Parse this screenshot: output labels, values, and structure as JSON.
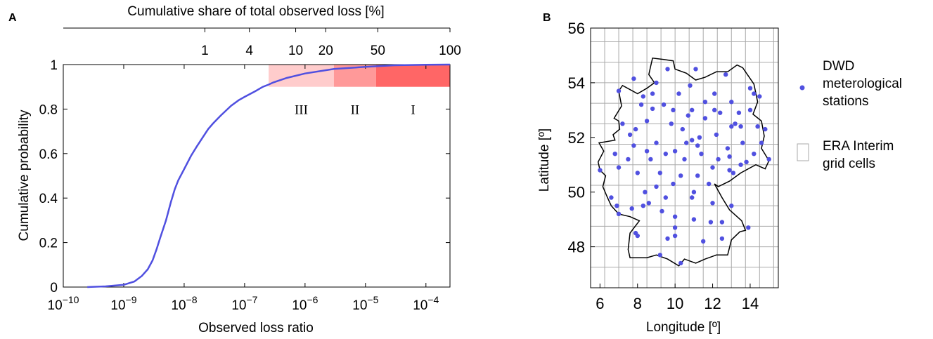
{
  "chart_data": [
    {
      "type": "line",
      "panel_label": "A",
      "xlabel": "Observed loss ratio",
      "ylabel": "Cumulative probability",
      "top_xlabel": "Cumulative share of total observed loss [%]",
      "x_scale": "log",
      "xlim": [
        1e-10,
        0.00025
      ],
      "ylim": [
        0,
        1
      ],
      "x_ticks": [
        {
          "value": 1e-10,
          "base": "10",
          "exp": "−10"
        },
        {
          "value": 1e-09,
          "base": "10",
          "exp": "−9"
        },
        {
          "value": 1e-08,
          "base": "10",
          "exp": "−8"
        },
        {
          "value": 1e-07,
          "base": "10",
          "exp": "−7"
        },
        {
          "value": 1e-06,
          "base": "10",
          "exp": "−6"
        },
        {
          "value": 1e-05,
          "base": "10",
          "exp": "−5"
        },
        {
          "value": 0.0001,
          "base": "10",
          "exp": "−4"
        }
      ],
      "y_ticks": [
        {
          "value": 0,
          "label": "0"
        },
        {
          "value": 0.2,
          "label": "0.2"
        },
        {
          "value": 0.4,
          "label": "0.4"
        },
        {
          "value": 0.6,
          "label": "0.6"
        },
        {
          "value": 0.8,
          "label": "0.8"
        },
        {
          "value": 1,
          "label": "1"
        }
      ],
      "top_ticks": [
        {
          "x": 2.2e-08,
          "label": "1"
        },
        {
          "x": 1.2e-07,
          "label": "4"
        },
        {
          "x": 7e-07,
          "label": "10"
        },
        {
          "x": 2.2e-06,
          "label": "20"
        },
        {
          "x": 1.6e-05,
          "label": "50"
        },
        {
          "x": 0.00025,
          "label": "100"
        }
      ],
      "series": [
        {
          "color": "#5050e0",
          "points": [
            [
              2.5e-10,
              0.0
            ],
            [
              5e-10,
              0.003
            ],
            [
              1e-09,
              0.01
            ],
            [
              1.5e-09,
              0.025
            ],
            [
              2e-09,
              0.05
            ],
            [
              2.5e-09,
              0.08
            ],
            [
              3e-09,
              0.12
            ],
            [
              3.5e-09,
              0.17
            ],
            [
              4e-09,
              0.22
            ],
            [
              5e-09,
              0.3
            ],
            [
              6e-09,
              0.38
            ],
            [
              7e-09,
              0.44
            ],
            [
              8e-09,
              0.48
            ],
            [
              1e-08,
              0.53
            ],
            [
              1.3e-08,
              0.59
            ],
            [
              1.6e-08,
              0.63
            ],
            [
              2e-08,
              0.67
            ],
            [
              2.5e-08,
              0.71
            ],
            [
              3e-08,
              0.735
            ],
            [
              4e-08,
              0.77
            ],
            [
              5e-08,
              0.795
            ],
            [
              6e-08,
              0.815
            ],
            [
              8e-08,
              0.84
            ],
            [
              1e-07,
              0.855
            ],
            [
              1.5e-07,
              0.88
            ],
            [
              2e-07,
              0.9
            ],
            [
              2.5e-07,
              0.91
            ],
            [
              3e-07,
              0.92
            ],
            [
              5e-07,
              0.94
            ],
            [
              1e-06,
              0.96
            ],
            [
              3e-06,
              0.98
            ],
            [
              1e-05,
              0.99
            ],
            [
              3e-05,
              0.997
            ],
            [
              0.0001,
              0.999
            ],
            [
              0.00025,
              1.0
            ]
          ]
        }
      ],
      "regions": [
        {
          "label": "III",
          "x0": 2.5e-07,
          "x1": 3e-06,
          "y0": 0.9,
          "y1": 1.0,
          "color": "#ffcccc"
        },
        {
          "label": "II",
          "x0": 3e-06,
          "x1": 1.5e-05,
          "y0": 0.9,
          "y1": 1.0,
          "color": "#ff9999"
        },
        {
          "label": "I",
          "x0": 1.5e-05,
          "x1": 0.00025,
          "y0": 0.9,
          "y1": 1.0,
          "color": "#ff6666"
        }
      ]
    },
    {
      "type": "scatter",
      "panel_label": "B",
      "xlabel": "Longitude [º]",
      "ylabel": "Latitude [º]",
      "xlim": [
        5.5,
        15.5
      ],
      "ylim": [
        46.5,
        56
      ],
      "x_ticks": [
        6,
        8,
        10,
        12,
        14
      ],
      "y_ticks": [
        48,
        50,
        52,
        54,
        56
      ],
      "grid_step": 0.75,
      "grid_color": "#aaaaaa",
      "legend": [
        {
          "marker": "dot",
          "color": "#5050e0",
          "label": "DWD\nmeterological\nstations"
        },
        {
          "marker": "box",
          "label": "ERA Interim\ngrid cells"
        }
      ],
      "border": [
        [
          7.0,
          53.7
        ],
        [
          7.2,
          53.9
        ],
        [
          8.0,
          53.6
        ],
        [
          8.5,
          53.8
        ],
        [
          8.9,
          54.0
        ],
        [
          8.6,
          54.3
        ],
        [
          8.7,
          54.6
        ],
        [
          8.8,
          54.9
        ],
        [
          9.4,
          54.85
        ],
        [
          9.9,
          54.8
        ],
        [
          10.0,
          54.5
        ],
        [
          10.6,
          54.35
        ],
        [
          11.1,
          54.1
        ],
        [
          11.6,
          54.2
        ],
        [
          12.2,
          54.4
        ],
        [
          12.8,
          54.4
        ],
        [
          13.3,
          54.65
        ],
        [
          13.6,
          54.55
        ],
        [
          14.2,
          53.95
        ],
        [
          14.4,
          53.3
        ],
        [
          14.15,
          52.85
        ],
        [
          14.6,
          52.6
        ],
        [
          14.75,
          52.05
        ],
        [
          14.6,
          51.6
        ],
        [
          15.0,
          51.15
        ],
        [
          14.8,
          50.85
        ],
        [
          14.3,
          51.0
        ],
        [
          13.5,
          50.7
        ],
        [
          12.9,
          50.4
        ],
        [
          12.3,
          50.2
        ],
        [
          12.1,
          50.3
        ],
        [
          12.5,
          49.8
        ],
        [
          12.9,
          49.35
        ],
        [
          13.55,
          48.95
        ],
        [
          13.75,
          48.6
        ],
        [
          13.45,
          48.55
        ],
        [
          13.0,
          48.25
        ],
        [
          12.8,
          47.7
        ],
        [
          12.2,
          47.7
        ],
        [
          11.6,
          47.55
        ],
        [
          11.1,
          47.4
        ],
        [
          10.5,
          47.55
        ],
        [
          10.2,
          47.3
        ],
        [
          9.6,
          47.55
        ],
        [
          9.0,
          47.7
        ],
        [
          8.5,
          47.6
        ],
        [
          7.6,
          47.6
        ],
        [
          7.5,
          47.9
        ],
        [
          7.6,
          48.5
        ],
        [
          8.1,
          48.95
        ],
        [
          7.6,
          49.1
        ],
        [
          7.0,
          49.2
        ],
        [
          6.6,
          49.5
        ],
        [
          6.4,
          49.8
        ],
        [
          6.15,
          50.2
        ],
        [
          6.3,
          50.6
        ],
        [
          6.0,
          50.8
        ],
        [
          5.9,
          51.1
        ],
        [
          6.2,
          51.5
        ],
        [
          5.95,
          51.8
        ],
        [
          6.8,
          51.9
        ],
        [
          6.7,
          52.1
        ],
        [
          7.05,
          52.3
        ],
        [
          7.0,
          52.6
        ],
        [
          6.75,
          52.7
        ],
        [
          7.15,
          53.15
        ],
        [
          7.0,
          53.7
        ]
      ],
      "stations": [
        [
          6.0,
          50.8
        ],
        [
          6.6,
          49.8
        ],
        [
          6.8,
          51.4
        ],
        [
          6.9,
          49.5
        ],
        [
          7.0,
          53.7
        ],
        [
          7.0,
          49.2
        ],
        [
          7.0,
          50.9
        ],
        [
          7.2,
          52.5
        ],
        [
          7.6,
          52.1
        ],
        [
          7.7,
          49.4
        ],
        [
          7.8,
          51.7
        ],
        [
          7.8,
          54.15
        ],
        [
          7.9,
          48.5
        ],
        [
          7.9,
          52.3
        ],
        [
          8.0,
          50.7
        ],
        [
          8.0,
          48.4
        ],
        [
          8.2,
          53.2
        ],
        [
          8.3,
          49.5
        ],
        [
          8.4,
          50.0
        ],
        [
          8.5,
          52.6
        ],
        [
          8.6,
          49.6
        ],
        [
          8.7,
          51.2
        ],
        [
          8.8,
          53.05
        ],
        [
          8.8,
          53.6
        ],
        [
          9.0,
          54.0
        ],
        [
          9.0,
          51.8
        ],
        [
          9.0,
          50.2
        ],
        [
          9.2,
          50.7
        ],
        [
          9.3,
          49.3
        ],
        [
          9.4,
          53.2
        ],
        [
          9.5,
          51.4
        ],
        [
          9.6,
          48.3
        ],
        [
          9.6,
          54.5
        ],
        [
          9.8,
          52.5
        ],
        [
          9.9,
          53.0
        ],
        [
          9.9,
          50.3
        ],
        [
          10.0,
          51.5
        ],
        [
          10.0,
          49.1
        ],
        [
          10.0,
          48.7
        ],
        [
          10.0,
          48.4
        ],
        [
          10.2,
          53.6
        ],
        [
          10.3,
          50.6
        ],
        [
          10.4,
          52.3
        ],
        [
          10.5,
          51.2
        ],
        [
          10.6,
          51.8
        ],
        [
          10.7,
          52.8
        ],
        [
          10.8,
          53.9
        ],
        [
          10.9,
          49.8
        ],
        [
          10.9,
          51.9
        ],
        [
          11.0,
          49.0
        ],
        [
          11.1,
          54.5
        ],
        [
          11.2,
          51.7
        ],
        [
          11.2,
          50.6
        ],
        [
          11.3,
          52.0
        ],
        [
          11.4,
          51.4
        ],
        [
          11.5,
          48.2
        ],
        [
          11.6,
          52.7
        ],
        [
          11.8,
          50.3
        ],
        [
          12.0,
          49.6
        ],
        [
          12.0,
          50.9
        ],
        [
          12.1,
          53.6
        ],
        [
          12.2,
          52.1
        ],
        [
          12.3,
          51.2
        ],
        [
          12.4,
          52.9
        ],
        [
          12.5,
          48.9
        ],
        [
          12.5,
          48.3
        ],
        [
          12.7,
          54.3
        ],
        [
          12.9,
          50.8
        ],
        [
          12.9,
          51.3
        ],
        [
          13.0,
          52.4
        ],
        [
          13.0,
          53.3
        ],
        [
          13.1,
          50.7
        ],
        [
          13.2,
          52.5
        ],
        [
          13.5,
          51.0
        ],
        [
          13.5,
          52.4
        ],
        [
          13.6,
          51.8
        ],
        [
          13.8,
          51.1
        ],
        [
          13.9,
          48.7
        ],
        [
          14.0,
          53.0
        ],
        [
          14.0,
          53.8
        ],
        [
          14.2,
          51.4
        ],
        [
          14.4,
          52.4
        ],
        [
          15.0,
          51.2
        ],
        [
          14.8,
          52.3
        ],
        [
          14.5,
          53.5
        ],
        [
          14.2,
          53.6
        ],
        [
          14.6,
          51.8
        ],
        [
          10.3,
          47.4
        ],
        [
          9.2,
          47.7
        ],
        [
          8.3,
          53.5
        ],
        [
          11.6,
          53.3
        ],
        [
          12.8,
          51.6
        ],
        [
          13.4,
          52.9
        ],
        [
          11.0,
          50.0
        ],
        [
          9.5,
          49.8
        ],
        [
          7.5,
          51.2
        ],
        [
          10.9,
          53.0
        ],
        [
          12.1,
          53.0
        ],
        [
          13.0,
          49.5
        ],
        [
          8.5,
          51.5
        ],
        [
          11.9,
          48.9
        ]
      ]
    }
  ]
}
